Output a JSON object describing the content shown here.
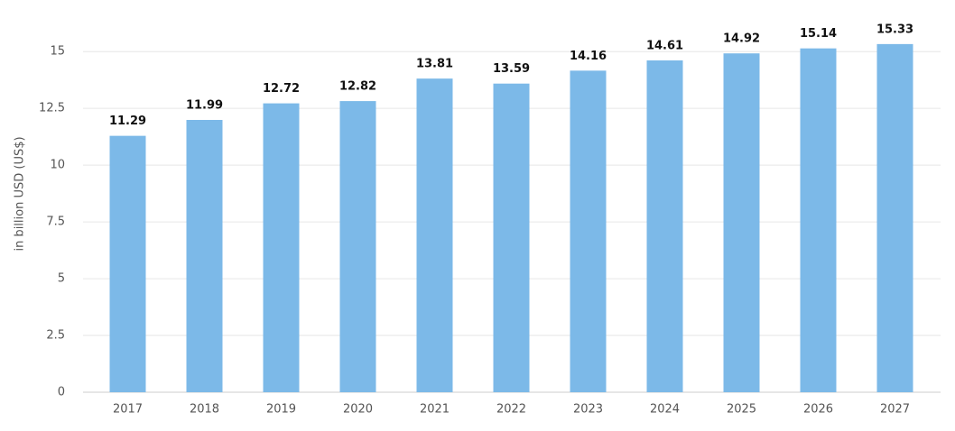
{
  "chart_data": {
    "type": "bar",
    "y_label": "in billion USD (US$)",
    "categories": [
      "2017",
      "2018",
      "2019",
      "2020",
      "2021",
      "2022",
      "2023",
      "2024",
      "2025",
      "2026",
      "2027"
    ],
    "values": [
      11.29,
      11.99,
      12.72,
      12.82,
      13.81,
      13.59,
      14.16,
      14.61,
      14.92,
      15.14,
      15.33
    ],
    "color": "#7cb9e8",
    "ylim": [
      0,
      16
    ],
    "yticks": [
      0,
      2.5,
      5,
      7.5,
      10,
      12.5,
      15
    ],
    "grid": true
  }
}
